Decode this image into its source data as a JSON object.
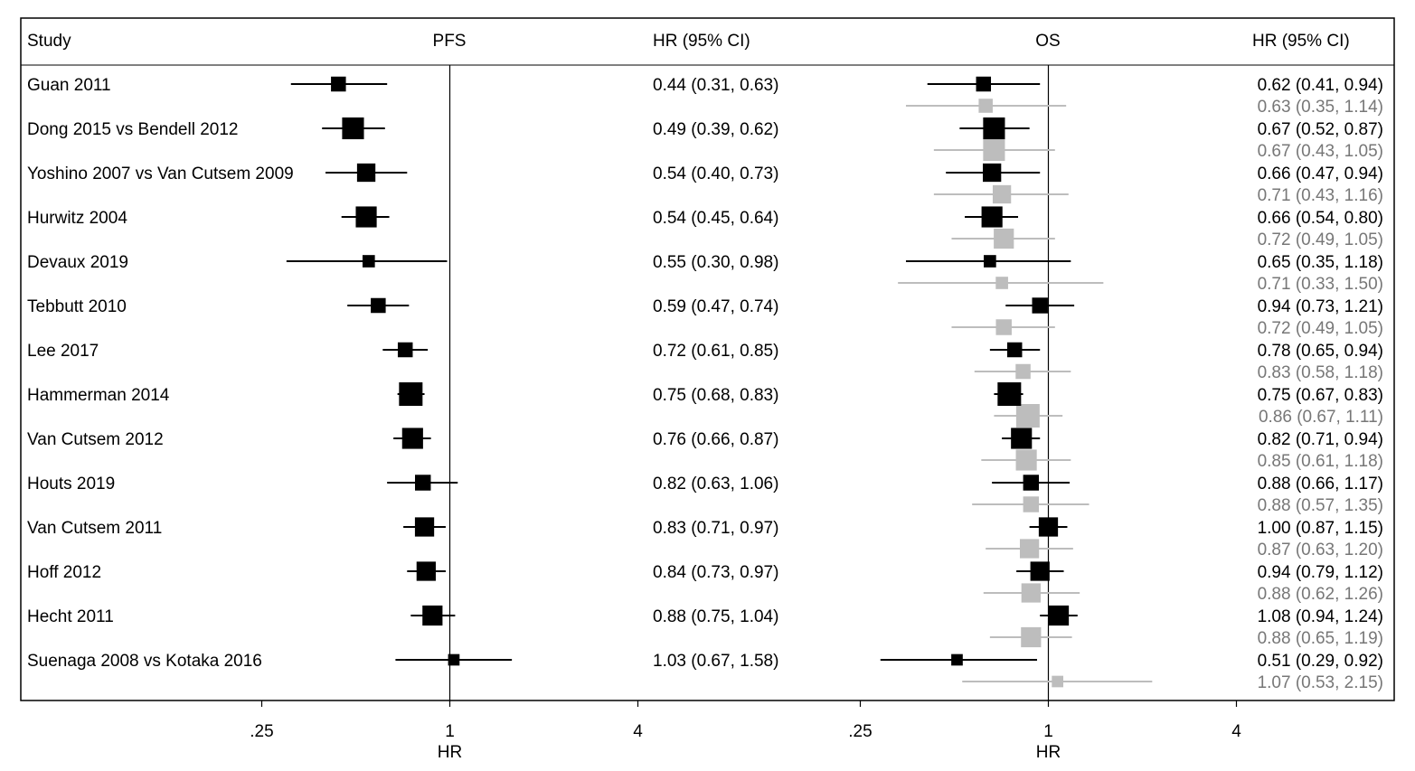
{
  "chart_data": {
    "type": "forest",
    "header": {
      "study": "Study",
      "pfs": "PFS",
      "pfs_ci": "HR (95% CI)",
      "os": "OS",
      "os_ci": "HR (95% CI)"
    },
    "axes": [
      {
        "panel": "PFS",
        "scale": "log2",
        "ticks": [
          ".25",
          "1",
          "4"
        ],
        "tick_values": [
          0.25,
          1,
          4
        ],
        "xlabel": "HR",
        "reference_line": 1
      },
      {
        "panel": "OS",
        "scale": "log2",
        "ticks": [
          ".25",
          "1",
          "4"
        ],
        "tick_values": [
          0.25,
          1,
          4
        ],
        "xlabel": "HR",
        "reference_line": 1
      }
    ],
    "colors": {
      "primary": "#000000",
      "secondary": "#bdbdbd",
      "secondary_text": "#777777"
    },
    "studies": [
      {
        "study": "Guan 2011",
        "pfs": {
          "hr": 0.44,
          "lo": 0.31,
          "hi": 0.63,
          "label": "0.44 (0.31, 0.63)",
          "weight": 0.5
        },
        "os": {
          "hr": 0.62,
          "lo": 0.41,
          "hi": 0.94,
          "label": "0.62 (0.41, 0.94)",
          "weight": 0.5
        },
        "os2": {
          "hr": 0.63,
          "lo": 0.35,
          "hi": 1.14,
          "label": "0.63 (0.35, 1.14)",
          "weight": 0.45
        }
      },
      {
        "study": "Dong 2015 vs Bendell 2012",
        "pfs": {
          "hr": 0.49,
          "lo": 0.39,
          "hi": 0.62,
          "label": "0.49 (0.39, 0.62)",
          "weight": 0.9
        },
        "os": {
          "hr": 0.67,
          "lo": 0.52,
          "hi": 0.87,
          "label": "0.67 (0.52, 0.87)",
          "weight": 0.9
        },
        "os2": {
          "hr": 0.67,
          "lo": 0.43,
          "hi": 1.05,
          "label": "0.67 (0.43, 1.05)",
          "weight": 0.9
        }
      },
      {
        "study": "Yoshino 2007 vs Van Cutsem 2009",
        "pfs": {
          "hr": 0.54,
          "lo": 0.4,
          "hi": 0.73,
          "label": "0.54 (0.40, 0.73)",
          "weight": 0.7
        },
        "os": {
          "hr": 0.66,
          "lo": 0.47,
          "hi": 0.94,
          "label": "0.66 (0.47, 0.94)",
          "weight": 0.7
        },
        "os2": {
          "hr": 0.71,
          "lo": 0.43,
          "hi": 1.16,
          "label": "0.71 (0.43, 1.16)",
          "weight": 0.7
        }
      },
      {
        "study": "Hurwitz 2004",
        "pfs": {
          "hr": 0.54,
          "lo": 0.45,
          "hi": 0.64,
          "label": "0.54 (0.45, 0.64)",
          "weight": 0.85
        },
        "os": {
          "hr": 0.66,
          "lo": 0.54,
          "hi": 0.8,
          "label": "0.66 (0.54, 0.80)",
          "weight": 0.85
        },
        "os2": {
          "hr": 0.72,
          "lo": 0.49,
          "hi": 1.05,
          "label": "0.72 (0.49, 1.05)",
          "weight": 0.8
        }
      },
      {
        "study": "Devaux 2019",
        "pfs": {
          "hr": 0.55,
          "lo": 0.3,
          "hi": 0.98,
          "label": "0.55 (0.30, 0.98)",
          "weight": 0.35
        },
        "os": {
          "hr": 0.65,
          "lo": 0.35,
          "hi": 1.18,
          "label": "0.65 (0.35, 1.18)",
          "weight": 0.35
        },
        "os2": {
          "hr": 0.71,
          "lo": 0.33,
          "hi": 1.5,
          "label": "0.71 (0.33, 1.50)",
          "weight": 0.35
        }
      },
      {
        "study": "Tebbutt 2010",
        "pfs": {
          "hr": 0.59,
          "lo": 0.47,
          "hi": 0.74,
          "label": "0.59 (0.47, 0.74)",
          "weight": 0.5
        },
        "os": {
          "hr": 0.94,
          "lo": 0.73,
          "hi": 1.21,
          "label": "0.94 (0.73, 1.21)",
          "weight": 0.55
        },
        "os2": {
          "hr": 0.72,
          "lo": 0.49,
          "hi": 1.05,
          "label": "0.72 (0.49, 1.05)",
          "weight": 0.55
        }
      },
      {
        "study": "Lee 2017",
        "pfs": {
          "hr": 0.72,
          "lo": 0.61,
          "hi": 0.85,
          "label": "0.72 (0.61, 0.85)",
          "weight": 0.5
        },
        "os": {
          "hr": 0.78,
          "lo": 0.65,
          "hi": 0.94,
          "label": "0.78 (0.65, 0.94)",
          "weight": 0.5
        },
        "os2": {
          "hr": 0.83,
          "lo": 0.58,
          "hi": 1.18,
          "label": "0.83 (0.58, 1.18)",
          "weight": 0.5
        }
      },
      {
        "study": "Hammerman 2014",
        "pfs": {
          "hr": 0.75,
          "lo": 0.68,
          "hi": 0.83,
          "label": "0.75 (0.68, 0.83)",
          "weight": 1.0
        },
        "os": {
          "hr": 0.75,
          "lo": 0.67,
          "hi": 0.83,
          "label": "0.75 (0.67, 0.83)",
          "weight": 1.0
        },
        "os2": {
          "hr": 0.86,
          "lo": 0.67,
          "hi": 1.11,
          "label": "0.86 (0.67, 1.11)",
          "weight": 1.0
        }
      },
      {
        "study": "Van Cutsem 2012",
        "pfs": {
          "hr": 0.76,
          "lo": 0.66,
          "hi": 0.87,
          "label": "0.76 (0.66, 0.87)",
          "weight": 0.85
        },
        "os": {
          "hr": 0.82,
          "lo": 0.71,
          "hi": 0.94,
          "label": "0.82 (0.71, 0.94)",
          "weight": 0.85
        },
        "os2": {
          "hr": 0.85,
          "lo": 0.61,
          "hi": 1.18,
          "label": "0.85 (0.61, 1.18)",
          "weight": 0.85
        }
      },
      {
        "study": "Houts 2019",
        "pfs": {
          "hr": 0.82,
          "lo": 0.63,
          "hi": 1.06,
          "label": "0.82 (0.63, 1.06)",
          "weight": 0.55
        },
        "os": {
          "hr": 0.88,
          "lo": 0.66,
          "hi": 1.17,
          "label": "0.88 (0.66, 1.17)",
          "weight": 0.55
        },
        "os2": {
          "hr": 0.88,
          "lo": 0.57,
          "hi": 1.35,
          "label": "0.88 (0.57, 1.35)",
          "weight": 0.55
        }
      },
      {
        "study": "Van Cutsem 2011",
        "pfs": {
          "hr": 0.83,
          "lo": 0.71,
          "hi": 0.97,
          "label": "0.83 (0.71, 0.97)",
          "weight": 0.75
        },
        "os": {
          "hr": 1.0,
          "lo": 0.87,
          "hi": 1.15,
          "label": "1.00 (0.87, 1.15)",
          "weight": 0.75
        },
        "os2": {
          "hr": 0.87,
          "lo": 0.63,
          "hi": 1.2,
          "label": "0.87 (0.63, 1.20)",
          "weight": 0.75
        }
      },
      {
        "study": "Hoff 2012",
        "pfs": {
          "hr": 0.84,
          "lo": 0.73,
          "hi": 0.97,
          "label": "0.84 (0.73, 0.97)",
          "weight": 0.75
        },
        "os": {
          "hr": 0.94,
          "lo": 0.79,
          "hi": 1.12,
          "label": "0.94 (0.79, 1.12)",
          "weight": 0.75
        },
        "os2": {
          "hr": 0.88,
          "lo": 0.62,
          "hi": 1.26,
          "label": "0.88 (0.62, 1.26)",
          "weight": 0.75
        }
      },
      {
        "study": "Hecht 2011",
        "pfs": {
          "hr": 0.88,
          "lo": 0.75,
          "hi": 1.04,
          "label": "0.88 (0.75, 1.04)",
          "weight": 0.8
        },
        "os": {
          "hr": 1.08,
          "lo": 0.94,
          "hi": 1.24,
          "label": "1.08 (0.94, 1.24)",
          "weight": 0.8
        },
        "os2": {
          "hr": 0.88,
          "lo": 0.65,
          "hi": 1.19,
          "label": "0.88 (0.65, 1.19)",
          "weight": 0.8
        }
      },
      {
        "study": "Suenaga 2008 vs Kotaka 2016",
        "pfs": {
          "hr": 1.03,
          "lo": 0.67,
          "hi": 1.58,
          "label": "1.03 (0.67, 1.58)",
          "weight": 0.3
        },
        "os": {
          "hr": 0.51,
          "lo": 0.29,
          "hi": 0.92,
          "label": "0.51 (0.29, 0.92)",
          "weight": 0.3
        },
        "os2": {
          "hr": 1.07,
          "lo": 0.53,
          "hi": 2.15,
          "label": "1.07 (0.53, 2.15)",
          "weight": 0.3
        }
      }
    ]
  }
}
